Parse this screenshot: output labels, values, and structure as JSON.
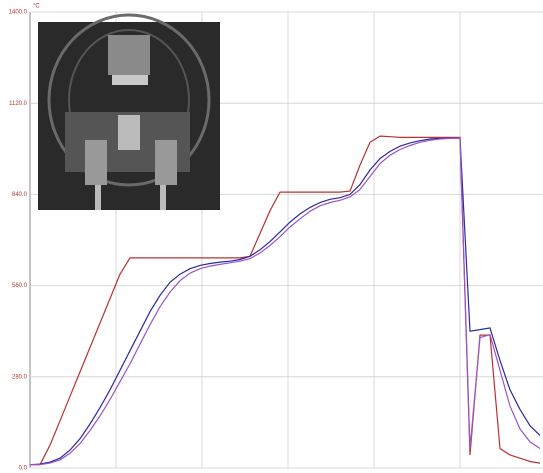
{
  "chart_data": {
    "type": "line",
    "y_unit": "°C",
    "categories": [
      null,
      null,
      null,
      null,
      null,
      null,
      null,
      null,
      null,
      null,
      null,
      null,
      null,
      null,
      null,
      null,
      null,
      null,
      null,
      null,
      null,
      null,
      null,
      null,
      null,
      null,
      null,
      null,
      null,
      null,
      null,
      null,
      null,
      null,
      null,
      null,
      null,
      null,
      null,
      null,
      null,
      null,
      null,
      null,
      null,
      null,
      null,
      null,
      null,
      null,
      null,
      null
    ],
    "series": [
      {
        "color": "#b83232",
        "values": [
          10,
          10,
          70,
          145,
          220,
          295,
          370,
          445,
          520,
          595,
          645,
          645,
          645,
          645,
          645,
          645,
          645,
          645,
          645,
          645,
          645,
          645,
          650,
          720,
          790,
          847,
          847,
          847,
          847,
          847,
          847,
          847,
          850,
          930,
          1000,
          1019,
          1017,
          1015,
          1015,
          1015,
          1015,
          1015,
          1015,
          1015,
          40,
          408,
          408,
          60,
          40,
          30,
          20,
          15
        ]
      },
      {
        "color": "#2b2b9e",
        "values": [
          10,
          12,
          18,
          30,
          55,
          90,
          135,
          185,
          240,
          300,
          360,
          420,
          480,
          530,
          570,
          595,
          612,
          622,
          628,
          632,
          635,
          640,
          650,
          670,
          695,
          725,
          755,
          780,
          800,
          815,
          825,
          830,
          840,
          870,
          915,
          950,
          972,
          988,
          998,
          1005,
          1010,
          1012,
          1013,
          1013,
          420,
          425,
          430,
          330,
          240,
          180,
          130,
          100
        ]
      },
      {
        "color": "#9a55c8",
        "values": [
          10,
          10,
          15,
          25,
          45,
          75,
          115,
          160,
          210,
          265,
          320,
          380,
          440,
          495,
          540,
          575,
          598,
          612,
          620,
          625,
          630,
          635,
          643,
          660,
          683,
          710,
          740,
          765,
          788,
          805,
          815,
          822,
          832,
          855,
          895,
          935,
          960,
          978,
          990,
          1000,
          1006,
          1010,
          1012,
          1013,
          60,
          400,
          410,
          300,
          190,
          120,
          80,
          60
        ]
      }
    ],
    "ylim": [
      0,
      1400
    ],
    "yticks": [
      {
        "value": 0,
        "label": "0.0"
      },
      {
        "value": 280,
        "label": "280.0"
      },
      {
        "value": 560,
        "label": "560.0"
      },
      {
        "value": 840,
        "label": "840.0"
      },
      {
        "value": 1120,
        "label": "1120.0"
      },
      {
        "value": 1400,
        "label": "1400.0"
      }
    ],
    "grid": true
  }
}
